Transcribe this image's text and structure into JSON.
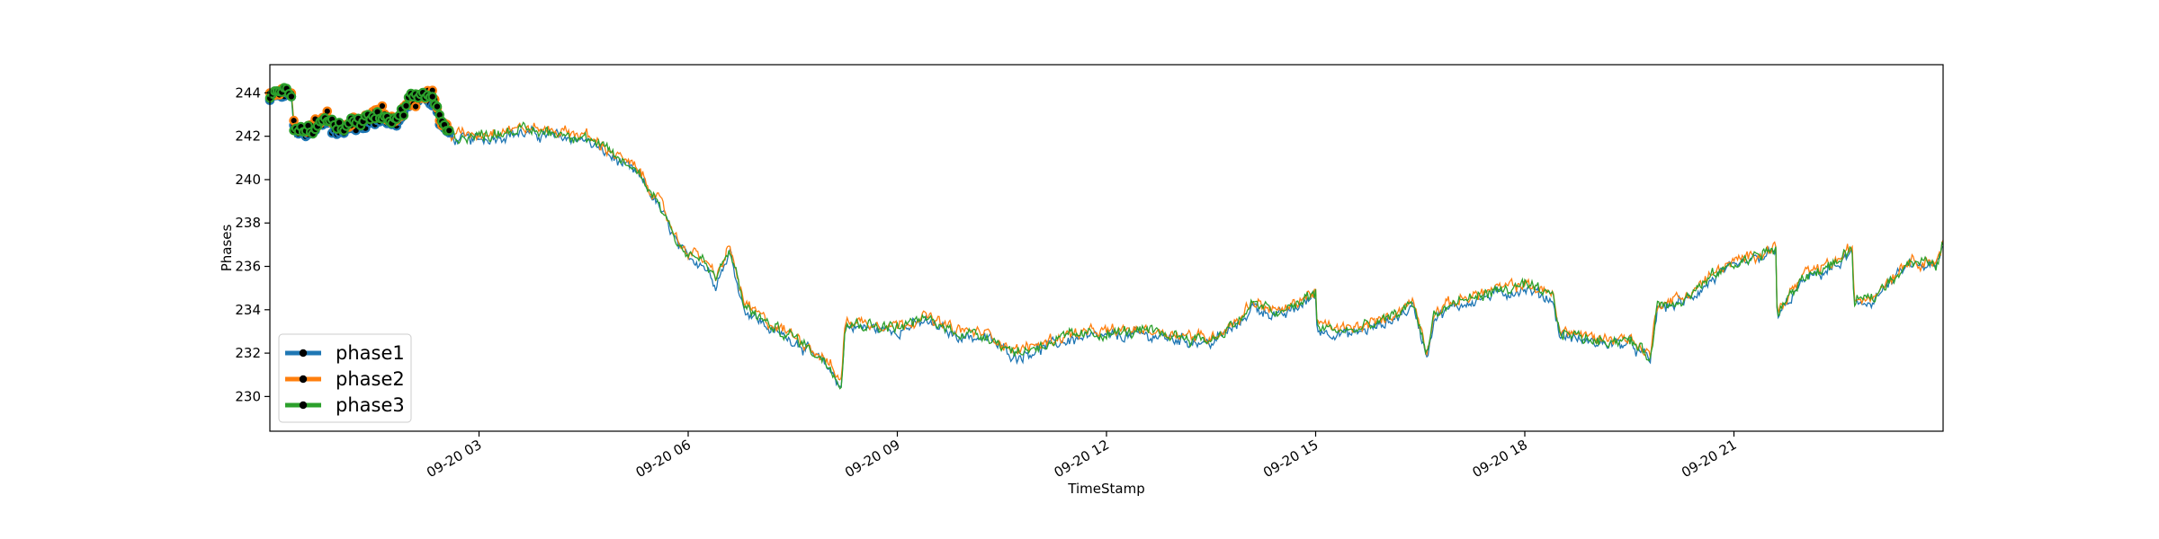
{
  "chart_data": {
    "type": "line",
    "title": "",
    "xlabel": "TimeStamp",
    "ylabel": "Phases",
    "x_range_hours": [
      0.0,
      24.0
    ],
    "ylim": [
      228.4,
      245.3
    ],
    "y_ticks": [
      230,
      232,
      234,
      236,
      238,
      240,
      242,
      244
    ],
    "x_ticks": [
      {
        "hour": 3,
        "label": "09-20 03"
      },
      {
        "hour": 6,
        "label": "09-20 06"
      },
      {
        "hour": 9,
        "label": "09-20 09"
      },
      {
        "hour": 12,
        "label": "09-20 12"
      },
      {
        "hour": 15,
        "label": "09-20 15"
      },
      {
        "hour": 18,
        "label": "09-20 18"
      },
      {
        "hour": 21,
        "label": "09-20 21"
      }
    ],
    "grid": false,
    "legend_placement": "bottom-left",
    "marker_range_hours": [
      0.0,
      2.6
    ],
    "series": [
      {
        "name": "phase1",
        "color": "#1f77b4",
        "offset": -0.15
      },
      {
        "name": "phase2",
        "color": "#ff7f0e",
        "offset": 0.1
      },
      {
        "name": "phase3",
        "color": "#2ca02c",
        "offset": 0.0
      }
    ],
    "baseline": [
      [
        0.0,
        243.8
      ],
      [
        0.3,
        244.2
      ],
      [
        0.35,
        242.2
      ],
      [
        0.6,
        242.4
      ],
      [
        0.8,
        242.8
      ],
      [
        1.0,
        242.3
      ],
      [
        1.3,
        242.7
      ],
      [
        1.6,
        243.0
      ],
      [
        1.8,
        242.6
      ],
      [
        2.0,
        243.5
      ],
      [
        2.2,
        244.0
      ],
      [
        2.35,
        243.8
      ],
      [
        2.45,
        242.6
      ],
      [
        2.6,
        242.0
      ],
      [
        3.0,
        242.0
      ],
      [
        3.5,
        242.3
      ],
      [
        4.0,
        242.2
      ],
      [
        4.5,
        242.0
      ],
      [
        4.9,
        241.2
      ],
      [
        5.3,
        240.3
      ],
      [
        5.6,
        238.8
      ],
      [
        5.9,
        236.8
      ],
      [
        6.2,
        236.3
      ],
      [
        6.4,
        235.4
      ],
      [
        6.6,
        236.8
      ],
      [
        6.8,
        234.2
      ],
      [
        7.2,
        233.2
      ],
      [
        7.6,
        232.6
      ],
      [
        8.0,
        231.5
      ],
      [
        8.2,
        230.6
      ],
      [
        8.25,
        233.4
      ],
      [
        8.6,
        233.3
      ],
      [
        9.0,
        233.2
      ],
      [
        9.4,
        233.6
      ],
      [
        9.8,
        233.0
      ],
      [
        10.3,
        232.8
      ],
      [
        10.7,
        232.0
      ],
      [
        11.0,
        232.3
      ],
      [
        11.5,
        232.8
      ],
      [
        12.0,
        232.9
      ],
      [
        12.5,
        233.0
      ],
      [
        13.0,
        232.8
      ],
      [
        13.5,
        232.6
      ],
      [
        13.9,
        233.5
      ],
      [
        14.1,
        234.3
      ],
      [
        14.5,
        233.8
      ],
      [
        15.0,
        234.8
      ],
      [
        15.02,
        233.2
      ],
      [
        15.5,
        233.0
      ],
      [
        16.0,
        233.5
      ],
      [
        16.4,
        234.3
      ],
      [
        16.6,
        232.0
      ],
      [
        16.7,
        233.8
      ],
      [
        17.0,
        234.3
      ],
      [
        17.5,
        234.8
      ],
      [
        18.0,
        235.1
      ],
      [
        18.4,
        234.6
      ],
      [
        18.5,
        233.0
      ],
      [
        19.0,
        232.6
      ],
      [
        19.5,
        232.6
      ],
      [
        19.8,
        231.8
      ],
      [
        19.9,
        234.2
      ],
      [
        20.3,
        234.5
      ],
      [
        20.8,
        235.8
      ],
      [
        21.4,
        236.6
      ],
      [
        21.6,
        236.8
      ],
      [
        21.62,
        233.8
      ],
      [
        22.0,
        235.5
      ],
      [
        22.5,
        236.2
      ],
      [
        22.7,
        236.8
      ],
      [
        22.72,
        234.3
      ],
      [
        23.0,
        234.6
      ],
      [
        23.5,
        236.2
      ],
      [
        23.9,
        236.1
      ],
      [
        24.0,
        237.0
      ]
    ]
  }
}
